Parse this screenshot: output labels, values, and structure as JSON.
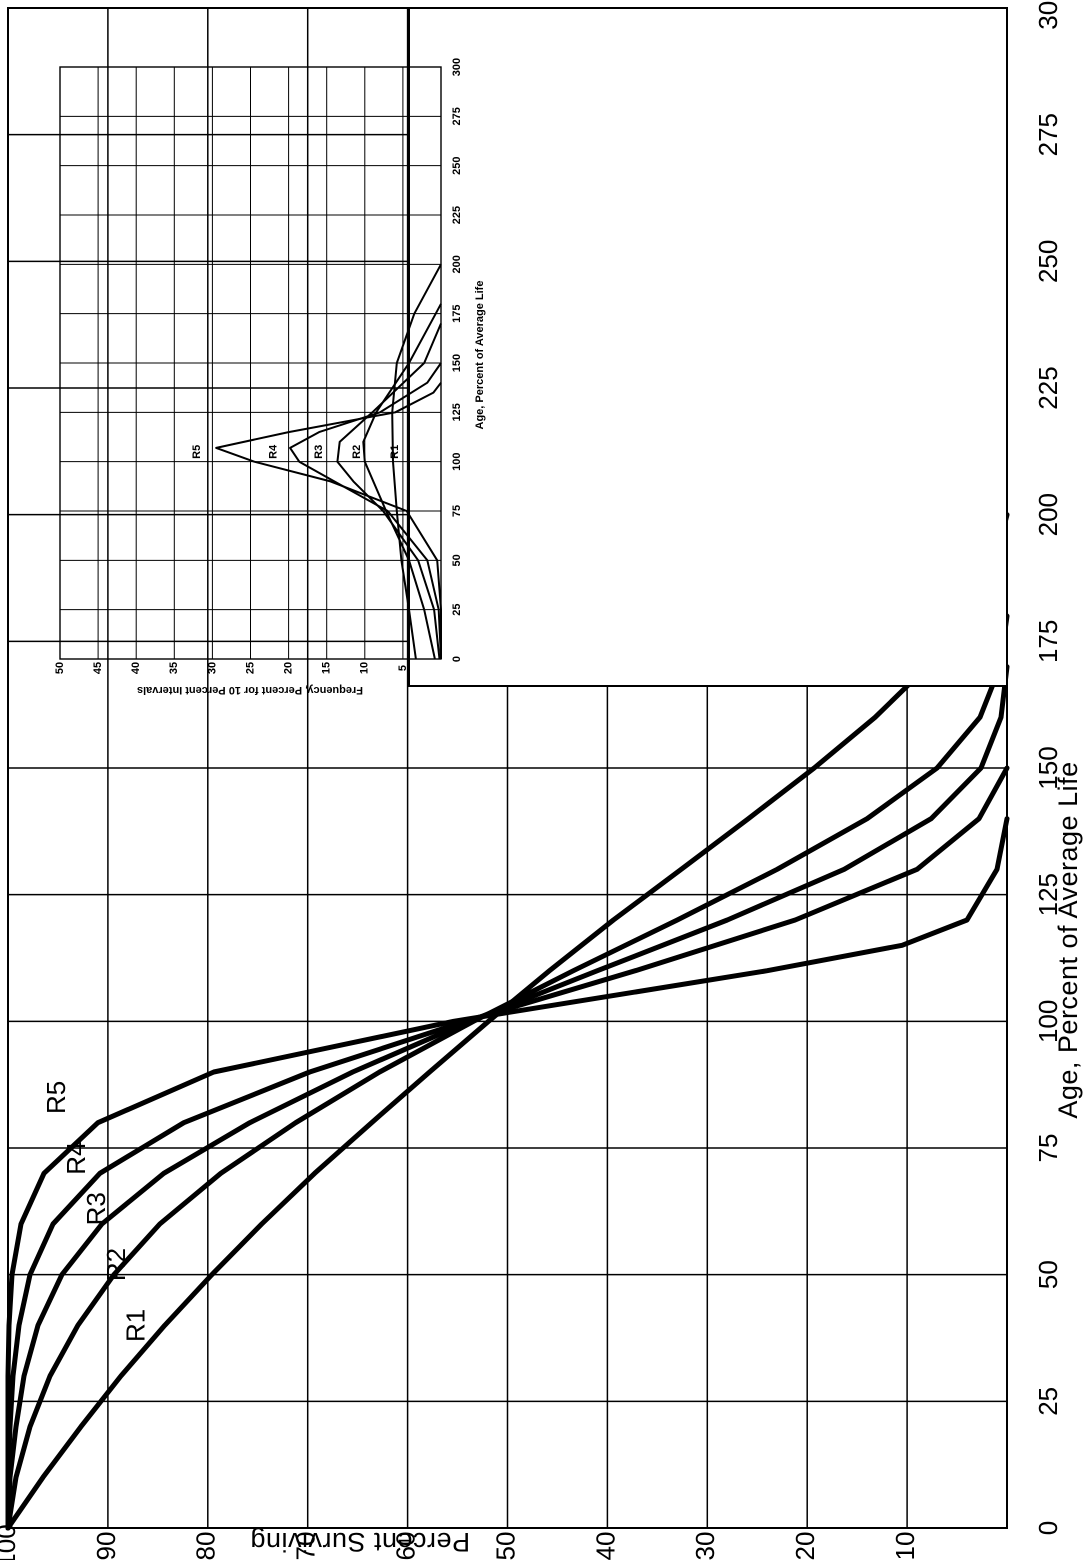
{
  "chart_data": [
    {
      "type": "line",
      "xlabel": "Age, Percent of Average Life",
      "ylabel": "Percent Surviving",
      "xlim": [
        0,
        300
      ],
      "ylim": [
        0,
        100
      ],
      "x_ticks": [
        "0",
        "25",
        "50",
        "75",
        "100",
        "125",
        "150",
        "175",
        "200",
        "225",
        "250",
        "275",
        "300"
      ],
      "y_ticks": [
        "10",
        "20",
        "30",
        "40",
        "50",
        "60",
        "70",
        "80",
        "90",
        "100"
      ],
      "grid": true,
      "series": [
        {
          "name": "R1",
          "x": [
            0,
            10,
            20,
            30,
            40,
            50,
            60,
            70,
            80,
            90,
            100,
            110,
            120,
            130,
            140,
            150,
            160,
            170,
            180,
            190,
            200
          ],
          "y": [
            100,
            96.5,
            92.7,
            88.7,
            84.3,
            79.6,
            74.6,
            69.3,
            63.6,
            57.8,
            51.9,
            45.8,
            39.4,
            32.6,
            25.9,
            19.3,
            13.2,
            8.0,
            4.0,
            1.3,
            0
          ]
        },
        {
          "name": "R2",
          "x": [
            0,
            10,
            20,
            30,
            40,
            50,
            60,
            70,
            80,
            90,
            100,
            110,
            120,
            130,
            140,
            150,
            160,
            170,
            180
          ],
          "y": [
            100,
            99.2,
            97.8,
            95.8,
            93.0,
            89.4,
            84.8,
            78.7,
            71.2,
            62.8,
            53.4,
            43.4,
            33.0,
            23.0,
            14.0,
            7.0,
            2.7,
            0.7,
            0
          ]
        },
        {
          "name": "R3",
          "x": [
            0,
            10,
            20,
            30,
            40,
            50,
            60,
            70,
            80,
            90,
            100,
            110,
            120,
            130,
            140,
            150,
            160,
            170
          ],
          "y": [
            100,
            99.8,
            99.2,
            98.4,
            97.0,
            94.6,
            90.6,
            84.4,
            75.8,
            65.5,
            53.8,
            41.0,
            28.0,
            16.3,
            7.6,
            2.6,
            0.6,
            0
          ]
        },
        {
          "name": "R4",
          "x": [
            0,
            10,
            20,
            30,
            40,
            50,
            60,
            70,
            80,
            90,
            100,
            110,
            120,
            130,
            140,
            150
          ],
          "y": [
            100,
            100,
            99.8,
            99.5,
            98.9,
            97.8,
            95.5,
            90.8,
            82.4,
            69.8,
            54.2,
            37.2,
            21.2,
            9.0,
            2.8,
            0
          ]
        },
        {
          "name": "R5",
          "x": [
            0,
            10,
            20,
            30,
            40,
            50,
            60,
            70,
            80,
            90,
            100,
            110,
            115,
            120,
            130,
            140
          ],
          "y": [
            100,
            100,
            100,
            100,
            99.9,
            99.6,
            98.7,
            96.4,
            91.0,
            79.4,
            55.4,
            24.0,
            10.5,
            4.0,
            1.0,
            0
          ]
        }
      ]
    },
    {
      "type": "line",
      "xlabel": "Age, Percent of Average Life",
      "ylabel": "Frequency, Percent for 10 Percent Intervals",
      "xlim": [
        0,
        300
      ],
      "ylim": [
        0,
        50
      ],
      "x_ticks": [
        "0",
        "25",
        "50",
        "75",
        "100",
        "125",
        "150",
        "175",
        "200",
        "225",
        "250",
        "275",
        "300"
      ],
      "y_ticks": [
        "5",
        "10",
        "15",
        "20",
        "25",
        "30",
        "35",
        "40",
        "45",
        "50"
      ],
      "grid": true,
      "series": [
        {
          "name": "R1",
          "x": [
            0,
            25,
            50,
            75,
            100,
            125,
            150,
            175,
            200
          ],
          "y": [
            3.3,
            4.2,
            5.2,
            5.8,
            6.3,
            6.4,
            5.8,
            3.5,
            0
          ]
        },
        {
          "name": "R2",
          "x": [
            0,
            25,
            50,
            75,
            100,
            110,
            125,
            150,
            175,
            180
          ],
          "y": [
            0.8,
            2.2,
            4.2,
            7.2,
            10.0,
            10.2,
            8.5,
            4.2,
            0.7,
            0
          ]
        },
        {
          "name": "R3",
          "x": [
            0,
            25,
            50,
            75,
            90,
            100,
            110,
            125,
            150,
            170
          ],
          "y": [
            0.2,
            0.9,
            3.0,
            7.6,
            11.5,
            13.6,
            13.3,
            9.0,
            2.2,
            0
          ]
        },
        {
          "name": "R4",
          "x": [
            0,
            25,
            50,
            75,
            90,
            100,
            107,
            115,
            125,
            140,
            150
          ],
          "y": [
            0,
            0.3,
            1.8,
            7.0,
            14.0,
            18.6,
            19.8,
            16.0,
            8.0,
            1.8,
            0
          ]
        },
        {
          "name": "R5",
          "x": [
            0,
            25,
            50,
            75,
            90,
            100,
            107,
            115,
            125,
            135,
            140
          ],
          "y": [
            0,
            0,
            0.5,
            4.5,
            14.5,
            24.5,
            29.5,
            20.0,
            6.0,
            1.0,
            0
          ]
        }
      ],
      "curve_labels": [
        {
          "name": "R1",
          "x": 105,
          "y": 6
        },
        {
          "name": "R2",
          "x": 105,
          "y": 11
        },
        {
          "name": "R3",
          "x": 105,
          "y": 16
        },
        {
          "name": "R4",
          "x": 105,
          "y": 22
        },
        {
          "name": "R5",
          "x": 105,
          "y": 32
        }
      ]
    }
  ]
}
